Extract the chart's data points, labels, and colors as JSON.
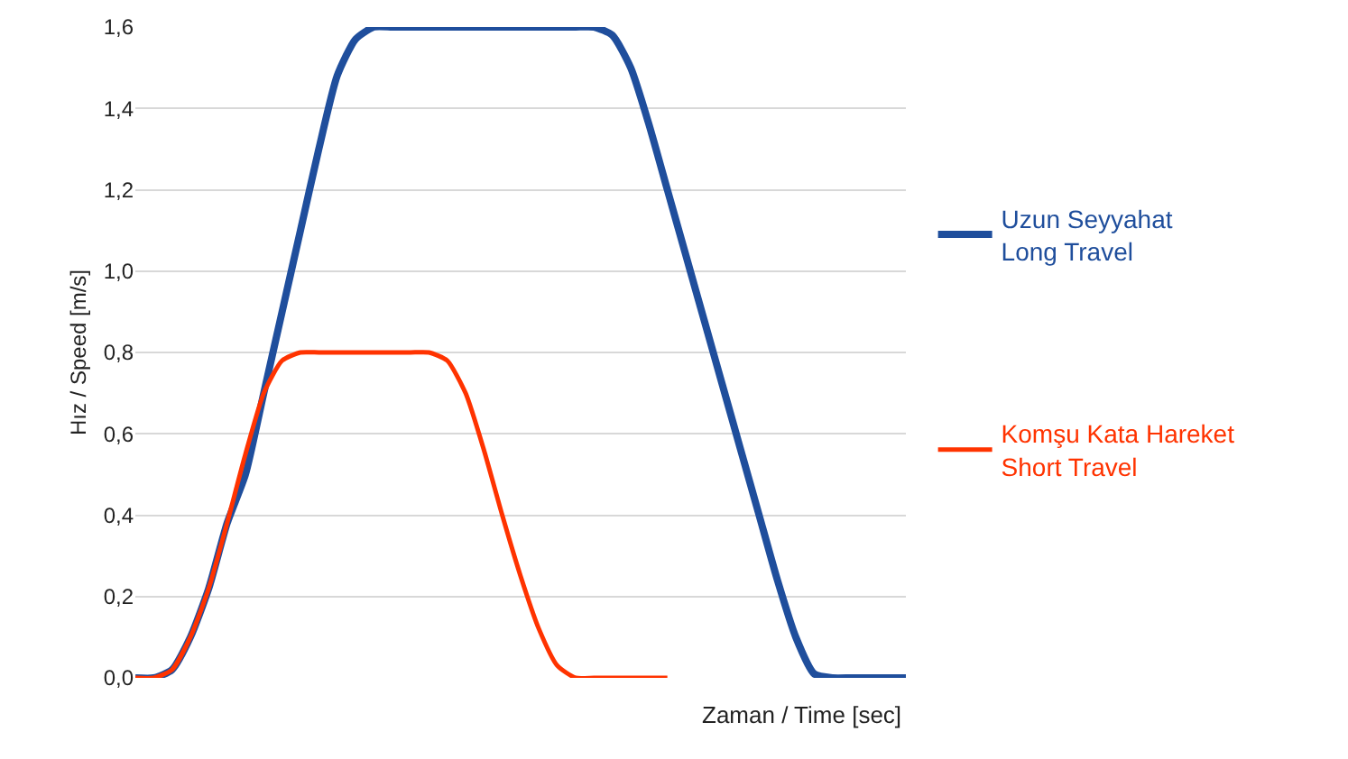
{
  "chart_data": {
    "type": "line",
    "xlabel": "Zaman / Time [sec]",
    "ylabel": "Hız / Speed [m/s]",
    "categories": [
      null,
      null,
      null,
      null,
      null,
      null,
      null,
      null,
      null,
      null,
      null,
      null,
      null,
      null,
      null,
      null,
      null,
      null,
      null,
      null,
      null,
      null,
      null,
      null,
      null,
      null,
      null,
      null,
      null,
      null,
      null,
      null,
      null,
      null,
      null,
      null,
      null,
      null,
      null,
      null,
      null,
      null,
      null
    ],
    "series": [
      {
        "name": "Uzun Seyyahat\nLong Travel",
        "color": "#1f4e9c",
        "values": [
          0,
          0,
          0.02,
          0.1,
          0.22,
          0.38,
          0.5,
          0.7,
          0.9,
          1.1,
          1.3,
          1.48,
          1.57,
          1.6,
          1.6,
          1.6,
          1.6,
          1.6,
          1.6,
          1.6,
          1.6,
          1.6,
          1.6,
          1.6,
          1.6,
          1.6,
          1.58,
          1.5,
          1.36,
          1.2,
          1.04,
          0.88,
          0.72,
          0.56,
          0.4,
          0.24,
          0.1,
          0.01,
          0,
          0,
          0,
          0,
          0
        ]
      },
      {
        "name": "Komşu Kata Hareket\nShort Travel",
        "color": "#ff3300",
        "values": [
          0,
          0,
          0.02,
          0.1,
          0.22,
          0.38,
          0.55,
          0.7,
          0.78,
          0.8,
          0.8,
          0.8,
          0.8,
          0.8,
          0.8,
          0.8,
          0.8,
          0.78,
          0.7,
          0.56,
          0.4,
          0.25,
          0.12,
          0.03,
          0,
          0,
          0,
          0,
          0,
          0,
          null,
          null,
          null,
          null,
          null,
          null,
          null,
          null,
          null,
          null,
          null,
          null,
          null
        ]
      }
    ],
    "ylim": [
      0,
      1.6
    ],
    "yticks": [
      {
        "value": 0,
        "label": "0,0"
      },
      {
        "value": 0.2,
        "label": "0,2"
      },
      {
        "value": 0.4,
        "label": "0,4"
      },
      {
        "value": 0.6,
        "label": "0,6"
      },
      {
        "value": 0.8,
        "label": "0,8"
      },
      {
        "value": 1,
        "label": "1,0"
      },
      {
        "value": 1.2,
        "label": "1,2"
      },
      {
        "value": 1.4,
        "label": "1,4"
      },
      {
        "value": 1.6,
        "label": "1,6"
      }
    ],
    "grid": "y",
    "legend": "right",
    "marker": "none",
    "line_style": "solid"
  }
}
